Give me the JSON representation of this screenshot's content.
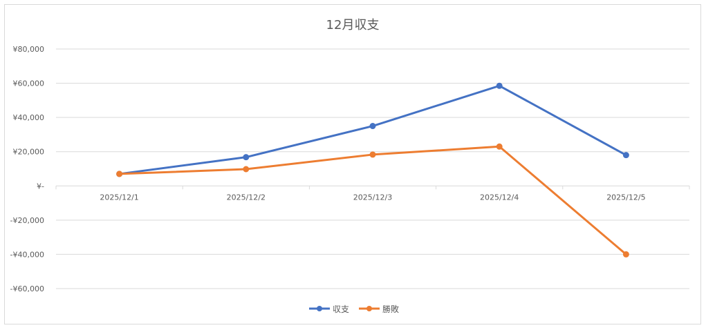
{
  "chart_data": {
    "type": "line",
    "title": "12月収支",
    "categories": [
      "2025/12/1",
      "2025/12/2",
      "2025/12/3",
      "2025/12/4",
      "2025/12/5"
    ],
    "series": [
      {
        "name": "収支",
        "color": "#4472c4",
        "values": [
          7000,
          16800,
          35000,
          58500,
          18000
        ]
      },
      {
        "name": "勝敗",
        "color": "#ed7d31",
        "values": [
          7000,
          9800,
          18300,
          23000,
          -40000
        ]
      }
    ],
    "yticks": [
      {
        "value": 80000,
        "label": "¥80,000"
      },
      {
        "value": 60000,
        "label": "¥60,000"
      },
      {
        "value": 40000,
        "label": "¥40,000"
      },
      {
        "value": 20000,
        "label": "¥20,000"
      },
      {
        "value": 0,
        "label": "¥-"
      },
      {
        "value": -20000,
        "label": "-¥20,000"
      },
      {
        "value": -40000,
        "label": "-¥40,000"
      },
      {
        "value": -60000,
        "label": "-¥60,000"
      }
    ],
    "ylim": [
      -60000,
      80000
    ],
    "grid": true,
    "legend_position": "bottom"
  }
}
